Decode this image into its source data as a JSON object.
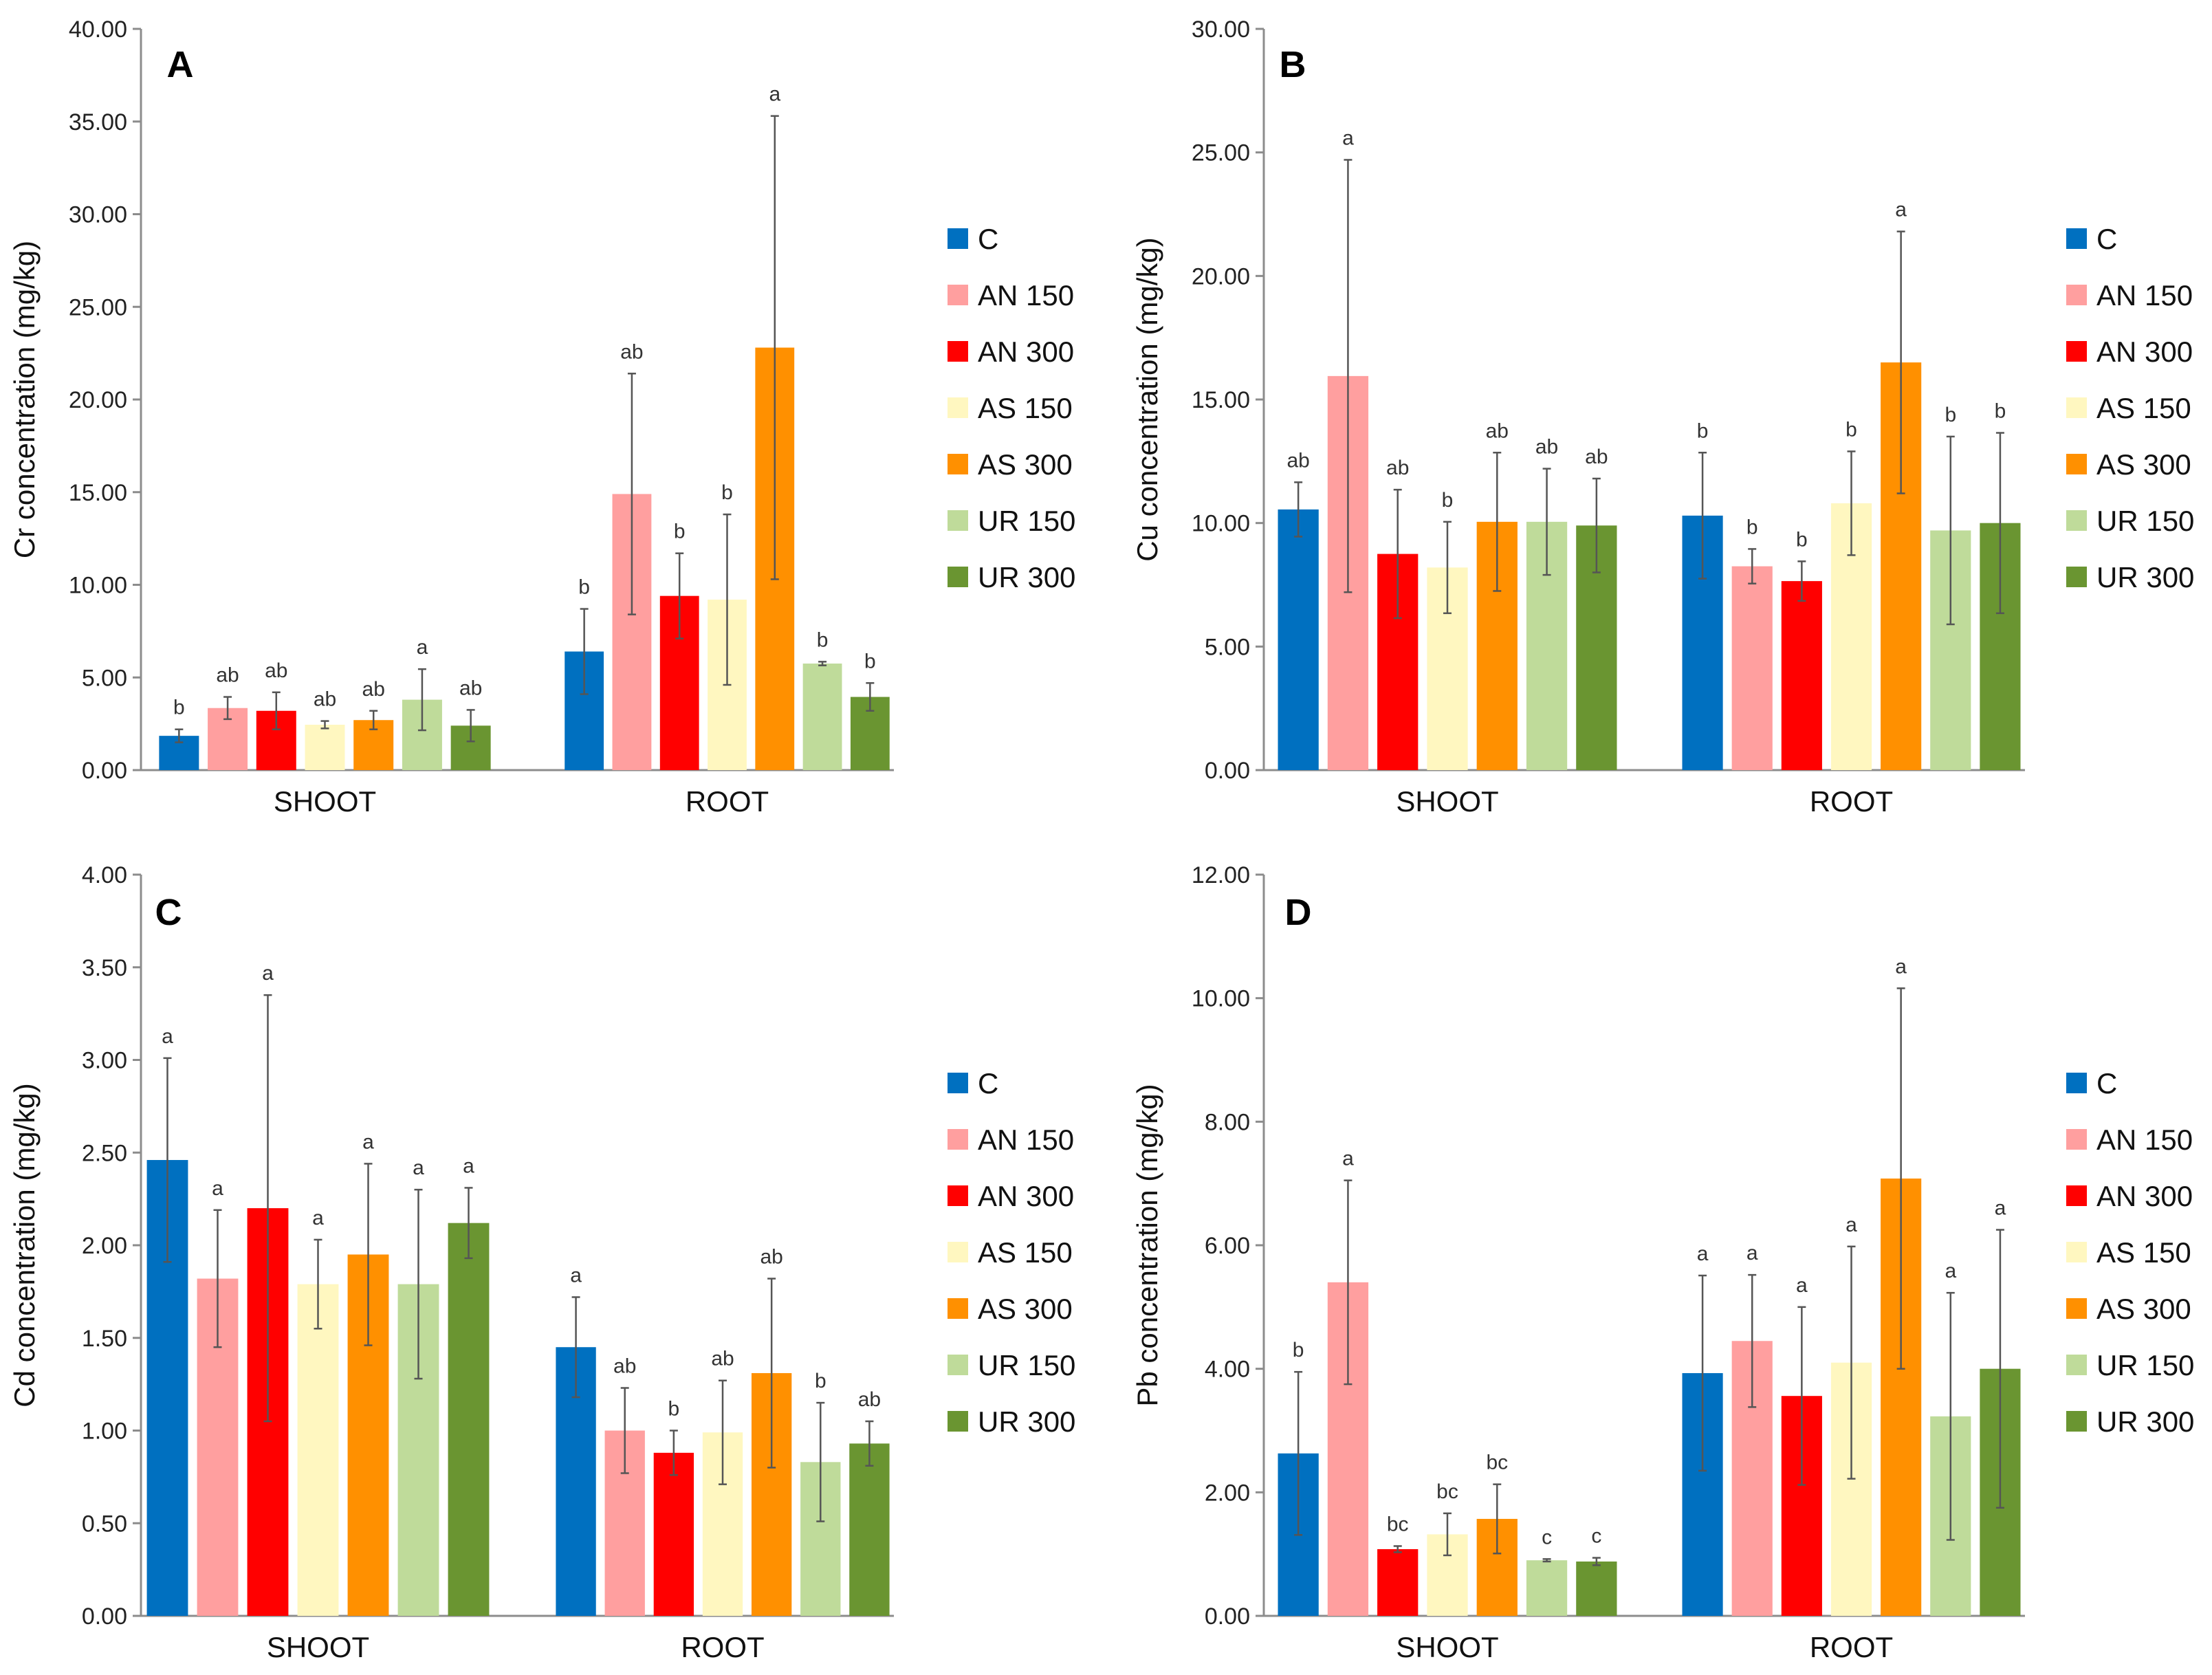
{
  "series_names": [
    "C",
    "AN 150",
    "AN 300",
    "AS 150",
    "AS 300",
    "UR 150",
    "UR 300"
  ],
  "colors": [
    "#0070C0",
    "#FF9F9F",
    "#FF0000",
    "#FFF7C0",
    "#FF9000",
    "#BFDB9A",
    "#6A9531"
  ],
  "chart_data": [
    {
      "type": "bar",
      "panel_label": "A",
      "ylabel": "Cr concentration (mg/kg)",
      "ylim": [
        0,
        40
      ],
      "yticks": [
        "0.00",
        "5.00",
        "10.00",
        "15.00",
        "20.00",
        "25.00",
        "30.00",
        "35.00",
        "40.00"
      ],
      "categories": [
        "SHOOT",
        "ROOT"
      ],
      "legend_position": "right",
      "series": [
        {
          "name": "C",
          "values": [
            1.85,
            6.4
          ],
          "errors": [
            0.35,
            2.3
          ],
          "letters": [
            "b",
            "b"
          ]
        },
        {
          "name": "AN 150",
          "values": [
            3.35,
            14.9
          ],
          "errors": [
            0.6,
            6.5
          ],
          "letters": [
            "ab",
            "ab"
          ]
        },
        {
          "name": "AN 300",
          "values": [
            3.2,
            9.4
          ],
          "errors": [
            1.0,
            2.3
          ],
          "letters": [
            "ab",
            "b"
          ]
        },
        {
          "name": "AS 150",
          "values": [
            2.45,
            9.2
          ],
          "errors": [
            0.2,
            4.6
          ],
          "letters": [
            "ab",
            "b"
          ]
        },
        {
          "name": "AS 300",
          "values": [
            2.7,
            22.8
          ],
          "errors": [
            0.5,
            12.5
          ],
          "letters": [
            "ab",
            "a"
          ]
        },
        {
          "name": "UR 150",
          "values": [
            3.8,
            5.75
          ],
          "errors": [
            1.65,
            0.1
          ],
          "letters": [
            "a",
            "b"
          ]
        },
        {
          "name": "UR 300",
          "values": [
            2.4,
            3.95
          ],
          "errors": [
            0.85,
            0.75
          ],
          "letters": [
            "ab",
            "b"
          ]
        }
      ]
    },
    {
      "type": "bar",
      "panel_label": "B",
      "ylabel": "Cu concentration (mg/kg)",
      "ylim": [
        0,
        30
      ],
      "yticks": [
        "0.00",
        "5.00",
        "10.00",
        "15.00",
        "20.00",
        "25.00",
        "30.00"
      ],
      "categories": [
        "SHOOT",
        "ROOT"
      ],
      "legend_position": "right",
      "series": [
        {
          "name": "C",
          "values": [
            10.55,
            10.3
          ],
          "errors": [
            1.1,
            2.55
          ],
          "letters": [
            "ab",
            "b"
          ]
        },
        {
          "name": "AN 150",
          "values": [
            15.95,
            8.25
          ],
          "errors": [
            8.75,
            0.7
          ],
          "letters": [
            "a",
            "b"
          ]
        },
        {
          "name": "AN 300",
          "values": [
            8.75,
            7.65
          ],
          "errors": [
            2.6,
            0.8
          ],
          "letters": [
            "ab",
            "b"
          ]
        },
        {
          "name": "AS 150",
          "values": [
            8.2,
            10.8
          ],
          "errors": [
            1.85,
            2.1
          ],
          "letters": [
            "b",
            "b"
          ]
        },
        {
          "name": "AS 300",
          "values": [
            10.05,
            16.5
          ],
          "errors": [
            2.8,
            5.3
          ],
          "letters": [
            "ab",
            "a"
          ]
        },
        {
          "name": "UR 150",
          "values": [
            10.05,
            9.7
          ],
          "errors": [
            2.15,
            3.8
          ],
          "letters": [
            "ab",
            "b"
          ]
        },
        {
          "name": "UR 300",
          "values": [
            9.9,
            10.0
          ],
          "errors": [
            1.9,
            3.65
          ],
          "letters": [
            "ab",
            "b"
          ]
        }
      ]
    },
    {
      "type": "bar",
      "panel_label": "C",
      "ylabel": "Cd concentration (mg/kg)",
      "ylim": [
        0,
        4
      ],
      "yticks": [
        "0.00",
        "0.50",
        "1.00",
        "1.50",
        "2.00",
        "2.50",
        "3.00",
        "3.50",
        "4.00"
      ],
      "categories": [
        "SHOOT",
        "ROOT"
      ],
      "legend_position": "right",
      "series": [
        {
          "name": "C",
          "values": [
            2.46,
            1.45
          ],
          "errors": [
            0.55,
            0.27
          ],
          "letters": [
            "a",
            "a"
          ]
        },
        {
          "name": "AN 150",
          "values": [
            1.82,
            1.0
          ],
          "errors": [
            0.37,
            0.23
          ],
          "letters": [
            "a",
            "ab"
          ]
        },
        {
          "name": "AN 300",
          "values": [
            2.2,
            0.88
          ],
          "errors": [
            1.15,
            0.12
          ],
          "letters": [
            "a",
            "b"
          ]
        },
        {
          "name": "AS 150",
          "values": [
            1.79,
            0.99
          ],
          "errors": [
            0.24,
            0.28
          ],
          "letters": [
            "a",
            "ab"
          ]
        },
        {
          "name": "AS 300",
          "values": [
            1.95,
            1.31
          ],
          "errors": [
            0.49,
            0.51
          ],
          "letters": [
            "a",
            "ab"
          ]
        },
        {
          "name": "UR 150",
          "values": [
            1.79,
            0.83
          ],
          "errors": [
            0.51,
            0.32
          ],
          "letters": [
            "a",
            "b"
          ]
        },
        {
          "name": "UR 300",
          "values": [
            2.12,
            0.93
          ],
          "errors": [
            0.19,
            0.12
          ],
          "letters": [
            "a",
            "ab"
          ]
        }
      ]
    },
    {
      "type": "bar",
      "panel_label": "D",
      "ylabel": "Pb concentration (mg/kg)",
      "ylim": [
        0,
        12
      ],
      "yticks": [
        "0.00",
        "2.00",
        "4.00",
        "6.00",
        "8.00",
        "10.00",
        "12.00"
      ],
      "categories": [
        "SHOOT",
        "ROOT"
      ],
      "legend_position": "right",
      "series": [
        {
          "name": "C",
          "values": [
            2.63,
            3.93
          ],
          "errors": [
            1.32,
            1.58
          ],
          "letters": [
            "b",
            "a"
          ]
        },
        {
          "name": "AN 150",
          "values": [
            5.4,
            4.45
          ],
          "errors": [
            1.65,
            1.07
          ],
          "letters": [
            "a",
            "a"
          ]
        },
        {
          "name": "AN 300",
          "values": [
            1.08,
            3.56
          ],
          "errors": [
            0.05,
            1.44
          ],
          "letters": [
            "bc",
            "a"
          ]
        },
        {
          "name": "AS 150",
          "values": [
            1.32,
            4.1
          ],
          "errors": [
            0.34,
            1.88
          ],
          "letters": [
            "bc",
            "a"
          ]
        },
        {
          "name": "AS 300",
          "values": [
            1.57,
            7.08
          ],
          "errors": [
            0.56,
            3.08
          ],
          "letters": [
            "bc",
            "a"
          ]
        },
        {
          "name": "UR 150",
          "values": [
            0.9,
            3.23
          ],
          "errors": [
            0.02,
            2.0
          ],
          "letters": [
            "c",
            "a"
          ]
        },
        {
          "name": "UR 300",
          "values": [
            0.88,
            4.0
          ],
          "errors": [
            0.06,
            2.25
          ],
          "letters": [
            "c",
            "a"
          ]
        }
      ]
    }
  ]
}
